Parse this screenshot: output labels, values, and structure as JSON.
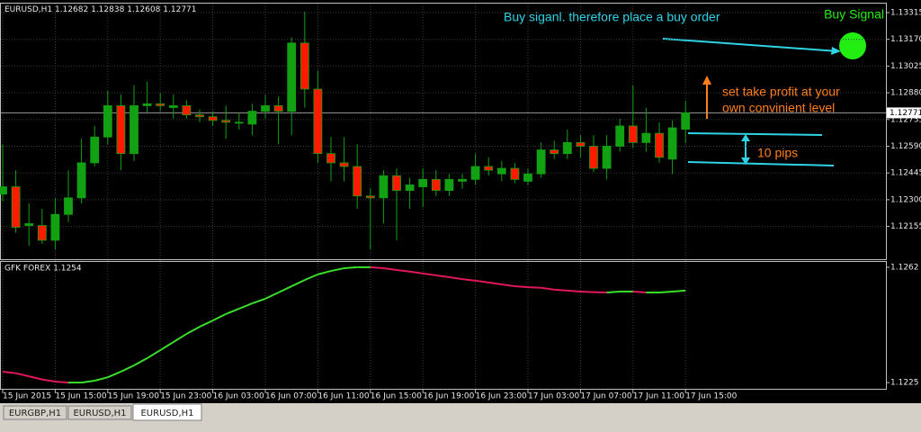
{
  "chart_data": [
    {
      "type": "candlestick",
      "symbol": "EURUSD,H1",
      "categories": [
        "15 Jun 2015",
        null,
        null,
        null,
        "15 Jun 15:00",
        null,
        null,
        null,
        "15 Jun 19:00",
        null,
        null,
        null,
        "15 Jun 23:00",
        null,
        null,
        null,
        "16 Jun 03:00",
        null,
        null,
        null,
        "16 Jun 07:00",
        null,
        null,
        null,
        "16 Jun 11:00",
        null,
        null,
        null,
        "16 Jun 15:00",
        null,
        null,
        null,
        "16 Jun 19:00",
        null,
        null,
        null,
        "16 Jun 23:00",
        null,
        null,
        null,
        "17 Jun 03:00",
        null,
        null,
        null,
        "17 Jun 07:00",
        null,
        null,
        null,
        "17 Jun 11:00",
        null,
        null,
        null,
        "17 Jun 15:00"
      ],
      "open": [
        1.1233,
        1.1237,
        1.1216,
        1.1216,
        1.1208,
        1.1222,
        1.1231,
        1.125,
        1.1264,
        1.1281,
        1.1255,
        1.1281,
        1.1282,
        1.128,
        1.1281,
        1.1276,
        1.1275,
        1.1273,
        1.1272,
        1.1271,
        1.1278,
        1.1281,
        1.1278,
        1.1315,
        1.129,
        1.1255,
        1.125,
        1.1248,
        1.1232,
        1.1231,
        1.1243,
        1.1235,
        1.1237,
        1.1241,
        1.1235,
        1.124,
        1.1241,
        1.1248,
        1.1244,
        1.1247,
        1.124,
        1.1244,
        1.1257,
        1.1255,
        1.1261,
        1.1259,
        1.1247,
        1.1259,
        1.127,
        1.1261,
        1.1266,
        1.1252,
        1.12682
      ],
      "high": [
        1.126,
        1.1246,
        1.1228,
        1.1225,
        1.1231,
        1.1246,
        1.1263,
        1.127,
        1.1289,
        1.1287,
        1.1292,
        1.1294,
        1.1288,
        1.1287,
        1.1284,
        1.1279,
        1.1278,
        1.1281,
        1.1277,
        1.1282,
        1.1287,
        1.1286,
        1.1318,
        1.1332,
        1.13,
        1.1264,
        1.1264,
        1.126,
        1.1236,
        1.1246,
        1.1247,
        1.1242,
        1.1247,
        1.1246,
        1.1244,
        1.1244,
        1.1255,
        1.1253,
        1.1251,
        1.125,
        1.1247,
        1.1261,
        1.1262,
        1.1268,
        1.1265,
        1.1265,
        1.1265,
        1.1274,
        1.1292,
        1.128,
        1.1272,
        1.1273,
        1.12838
      ],
      "low": [
        1.1229,
        1.1212,
        1.1205,
        1.1206,
        1.1203,
        1.1218,
        1.1228,
        1.1248,
        1.126,
        1.1246,
        1.1251,
        1.1277,
        1.1278,
        1.1274,
        1.1274,
        1.1272,
        1.127,
        1.1263,
        1.1268,
        1.1265,
        1.1274,
        1.126,
        1.1265,
        1.128,
        1.125,
        1.124,
        1.124,
        1.1225,
        1.1203,
        1.1217,
        1.1208,
        1.1225,
        1.1226,
        1.1232,
        1.1232,
        1.1236,
        1.1238,
        1.1243,
        1.124,
        1.1239,
        1.1238,
        1.1242,
        1.1252,
        1.1252,
        1.1253,
        1.1245,
        1.1241,
        1.1256,
        1.1258,
        1.1256,
        1.125,
        1.1244,
        1.12608
      ],
      "close": [
        1.1237,
        1.1215,
        1.1217,
        1.1208,
        1.1222,
        1.1231,
        1.125,
        1.1264,
        1.1281,
        1.1255,
        1.1281,
        1.1282,
        1.1281,
        1.1281,
        1.1276,
        1.1275,
        1.1273,
        1.1272,
        1.1272,
        1.1278,
        1.1281,
        1.1278,
        1.1315,
        1.129,
        1.1255,
        1.125,
        1.1248,
        1.1232,
        1.1231,
        1.1243,
        1.1235,
        1.1238,
        1.1241,
        1.1235,
        1.1241,
        1.1241,
        1.1248,
        1.1246,
        1.1247,
        1.1241,
        1.1244,
        1.1257,
        1.1255,
        1.1261,
        1.1259,
        1.1247,
        1.1259,
        1.127,
        1.1261,
        1.1266,
        1.1253,
        1.1269,
        1.12771
      ],
      "up_color": "#12a112",
      "down_color": "#ff1a00",
      "ylim": [
        1.11982,
        1.13359
      ],
      "yticks": [
        1.13315,
        {
          "value": 1.1317,
          "label": "1.13170"
        },
        1.13025,
        {
          "value": 1.1288,
          "label": "1.12880"
        },
        1.12735,
        {
          "value": 1.1259,
          "label": "1.12590"
        },
        1.12445,
        {
          "value": 1.123,
          "label": "1.12300"
        },
        1.12155
      ],
      "grid": true,
      "price_line": true,
      "annotations": [
        "Buy siganl. therefore place a buy order",
        "Buy Signal",
        "set take profit at your",
        "own convinient level",
        "10 pips"
      ]
    },
    {
      "type": "line",
      "title": "GFK FOREX 1.1254",
      "values": [
        1.12285,
        1.1228,
        1.1227,
        1.1226,
        1.12253,
        1.1225,
        1.1225,
        1.12256,
        1.12267,
        1.12285,
        1.12305,
        1.12328,
        1.12354,
        1.1238,
        1.12406,
        1.12429,
        1.12449,
        1.1247,
        1.12487,
        1.12504,
        1.12519,
        1.12539,
        1.12559,
        1.12579,
        1.12597,
        1.12608,
        1.12617,
        1.1262,
        1.1262,
        1.12617,
        1.12611,
        1.12606,
        1.126,
        1.12594,
        1.12588,
        1.12582,
        1.12577,
        1.12571,
        1.12565,
        1.12559,
        1.12556,
        1.12554,
        1.12548,
        1.12545,
        1.12542,
        1.1254,
        1.12539,
        1.12542,
        1.12542,
        1.12539,
        1.12539,
        1.12542,
        1.12545
      ],
      "rising_color": "#3adf2a",
      "falling_color": "#e0185a",
      "ylim": [
        1.1223,
        1.1264
      ],
      "yticks": [
        1.1262,
        1.1225
      ]
    }
  ],
  "tabs": [
    "EURGBP,H1",
    "EURUSD,H1",
    "EURUSD,H1"
  ],
  "active_tab": 2
}
